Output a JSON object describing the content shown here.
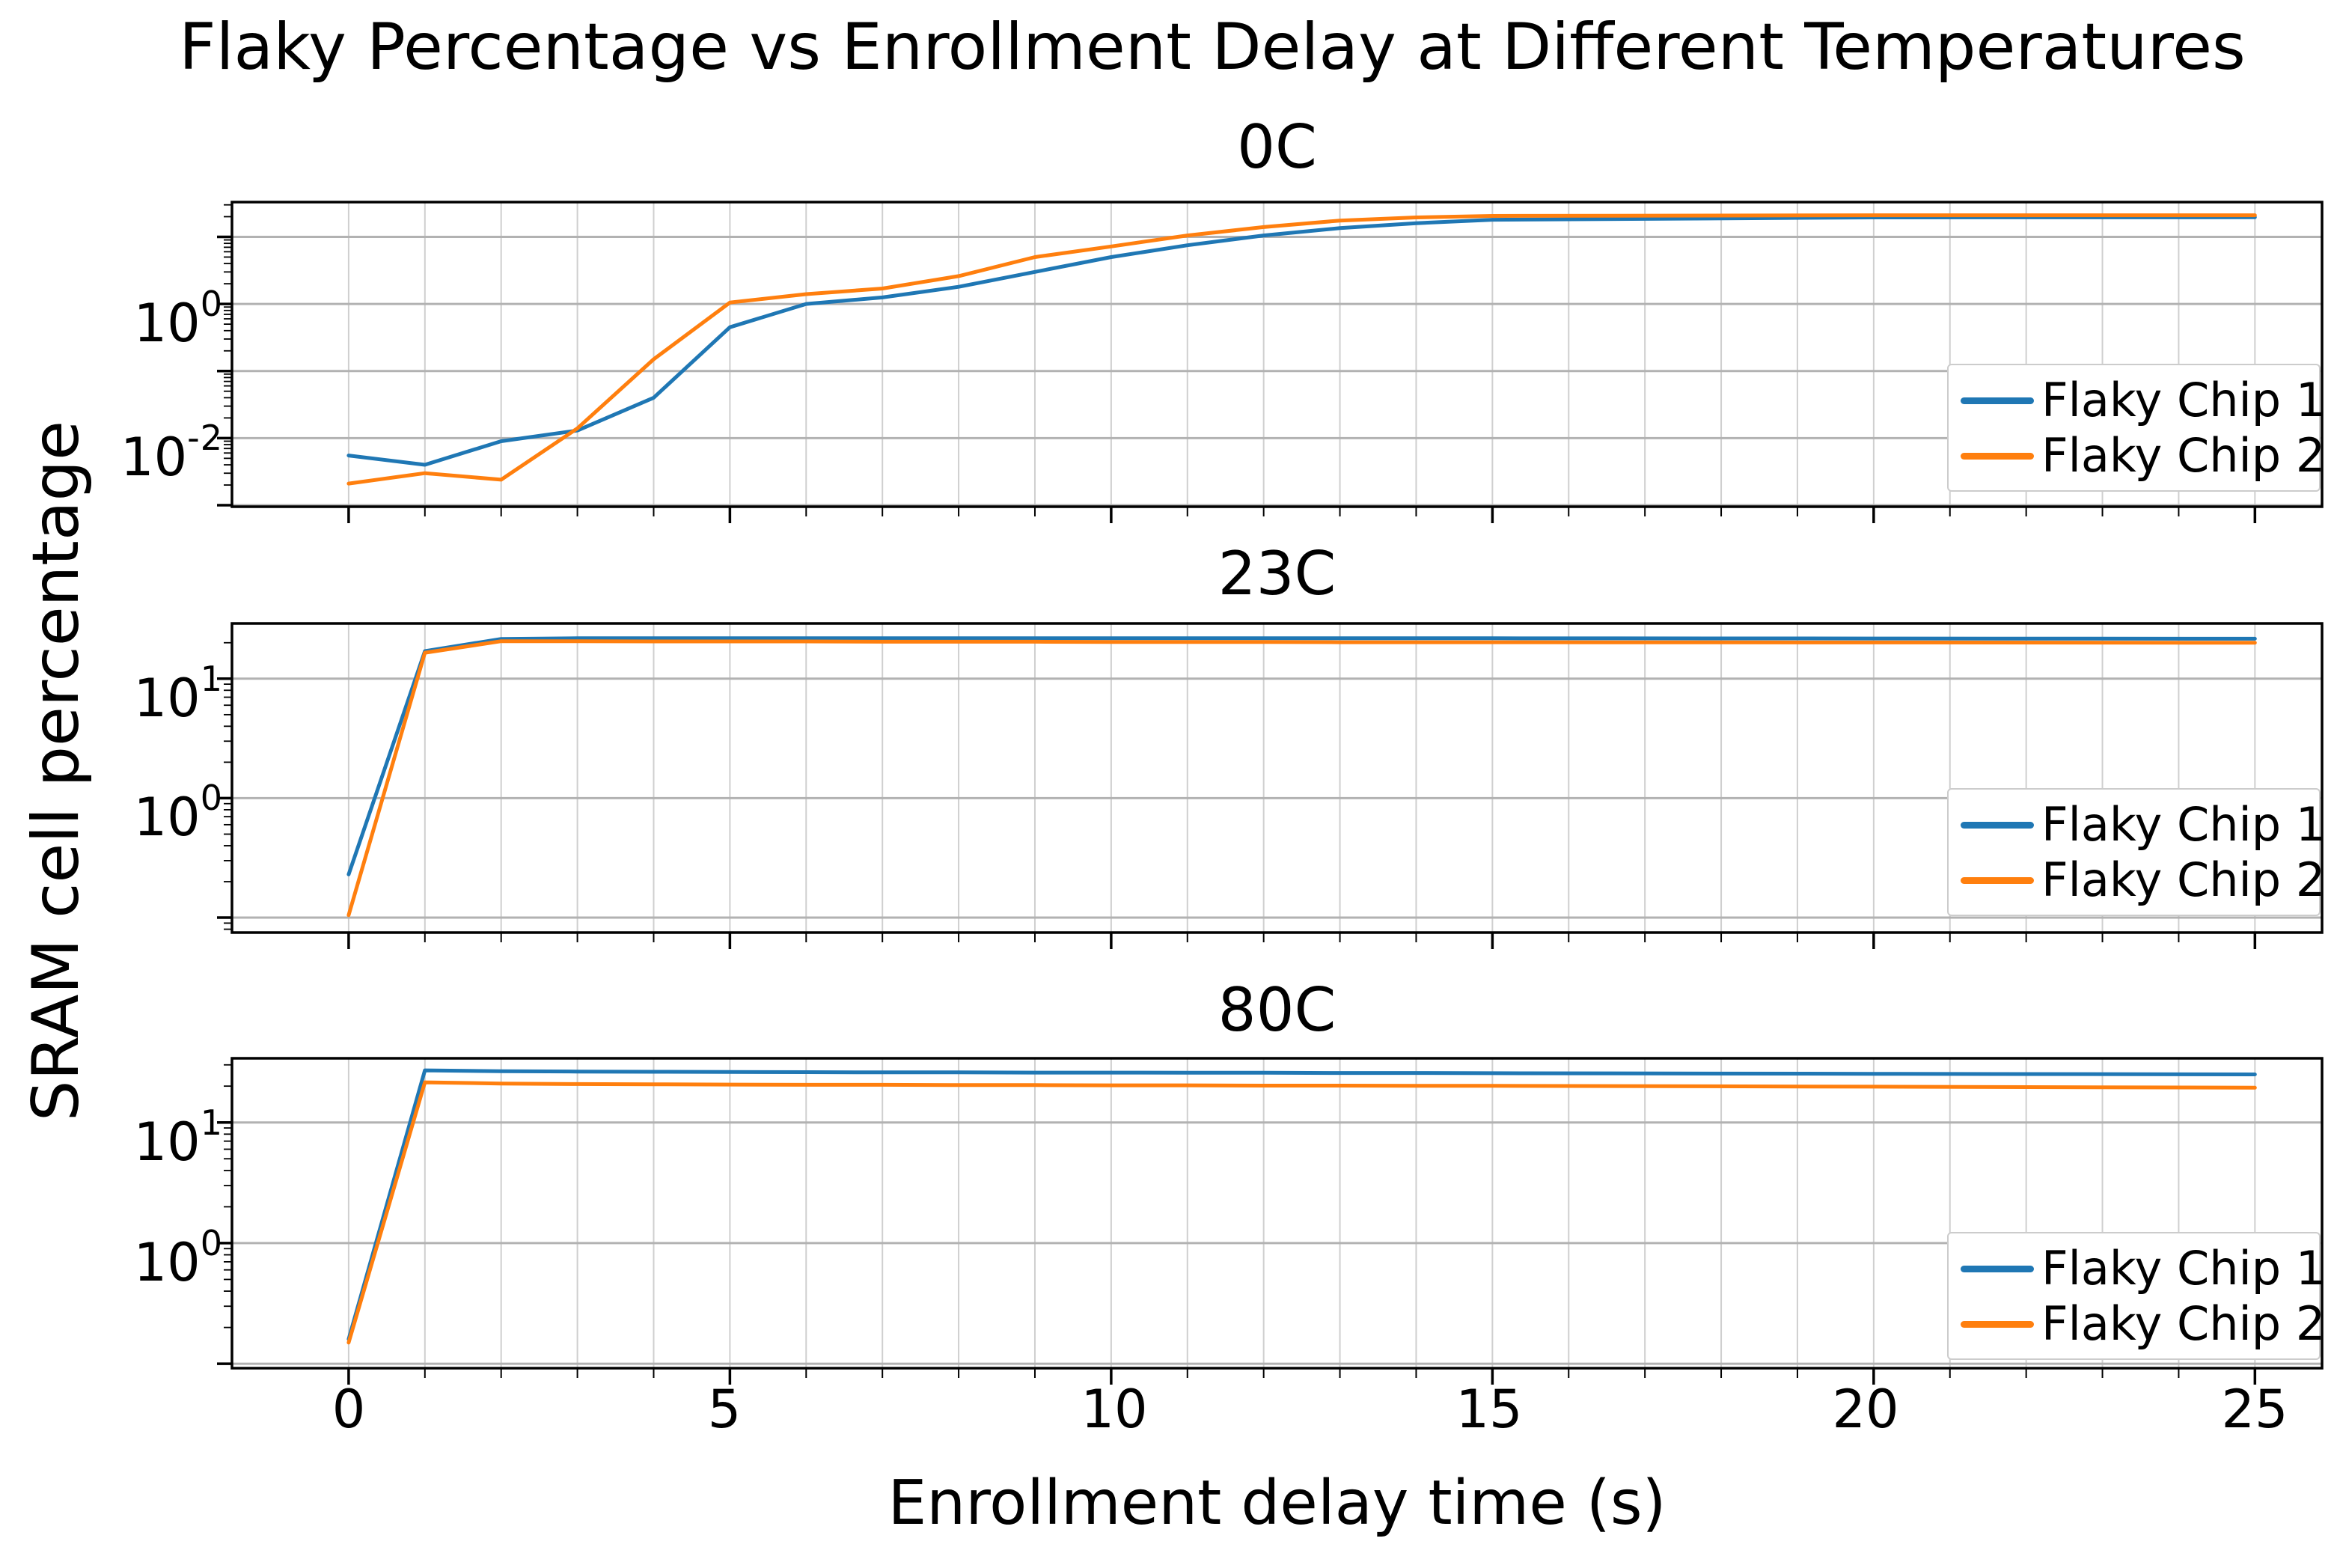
{
  "figure": {
    "title": "Flaky Percentage vs Enrollment Delay at Different Temperatures",
    "xlabel": "Enrollment delay time (s)",
    "ylabel": "SRAM cell percentage",
    "background_color": "#ffffff",
    "text_color": "#000000",
    "spine_color": "#000000",
    "major_grid_color": "#b2b2b2",
    "minor_grid_color": "#cfcfcf"
  },
  "legend": {
    "items": [
      {
        "label": "Flaky Chip 1",
        "color": "#1f77b4"
      },
      {
        "label": "Flaky Chip 2",
        "color": "#ff7f0e"
      }
    ],
    "position": "right"
  },
  "x_axis": {
    "tick_values": [
      0,
      5,
      10,
      15,
      20,
      25
    ],
    "tick_labels": [
      "0",
      "5",
      "10",
      "15",
      "20",
      "25"
    ],
    "minor_tick_step": 1,
    "minor_tick_min": 0,
    "minor_tick_max": 25
  },
  "chart_data": [
    {
      "type": "line",
      "title": "0C",
      "yscale": "log",
      "grid": true,
      "xlim": [
        -1.53,
        25.88
      ],
      "ylim": [
        0.00095,
        33
      ],
      "y_tick_labels": [
        {
          "base": "10",
          "exp": "0",
          "value": 1
        },
        {
          "base": "10",
          "exp": "-2",
          "value": 0.01
        }
      ],
      "x": [
        0,
        1,
        2,
        3,
        4,
        5,
        6,
        7,
        8,
        9,
        10,
        11,
        12,
        13,
        14,
        15,
        20,
        25
      ],
      "series": [
        {
          "name": "Flaky Chip 1",
          "color": "#1f77b4",
          "values": [
            0.0055,
            0.004,
            0.009,
            0.013,
            0.04,
            0.45,
            1.0,
            1.25,
            1.8,
            3.0,
            5.0,
            7.5,
            10.5,
            13.5,
            16,
            18,
            19.5,
            19.6
          ]
        },
        {
          "name": "Flaky Chip 2",
          "color": "#ff7f0e",
          "values": [
            0.0021,
            0.003,
            0.0024,
            0.014,
            0.15,
            1.05,
            1.4,
            1.7,
            2.6,
            5.0,
            7.2,
            10.5,
            14,
            17.5,
            19.5,
            20.5,
            21,
            21
          ]
        }
      ]
    },
    {
      "type": "line",
      "title": "23C",
      "yscale": "log",
      "grid": true,
      "xlim": [
        -1.53,
        25.88
      ],
      "ylim": [
        0.075,
        29
      ],
      "y_tick_labels": [
        {
          "base": "10",
          "exp": "1",
          "value": 10
        },
        {
          "base": "10",
          "exp": "0",
          "value": 1
        }
      ],
      "x": [
        0,
        1,
        2,
        3,
        4,
        5,
        6,
        7,
        8,
        9,
        10,
        11,
        12,
        13,
        14,
        15,
        20,
        25
      ],
      "series": [
        {
          "name": "Flaky Chip 1",
          "color": "#1f77b4",
          "values": [
            0.23,
            17,
            21.5,
            21.8,
            21.8,
            21.8,
            21.8,
            21.8,
            21.8,
            21.8,
            21.8,
            21.8,
            21.8,
            21.8,
            21.8,
            21.8,
            21.7,
            21.6
          ]
        },
        {
          "name": "Flaky Chip 2",
          "color": "#ff7f0e",
          "values": [
            0.105,
            16.5,
            20.6,
            20.6,
            20.5,
            20.5,
            20.5,
            20.4,
            20.4,
            20.4,
            20.3,
            20.3,
            20.3,
            20.2,
            20.2,
            20.2,
            20.1,
            20.0
          ]
        }
      ]
    },
    {
      "type": "line",
      "title": "80C",
      "yscale": "log",
      "grid": true,
      "xlim": [
        -1.53,
        25.88
      ],
      "ylim": [
        0.092,
        34
      ],
      "y_tick_labels": [
        {
          "base": "10",
          "exp": "1",
          "value": 10
        },
        {
          "base": "10",
          "exp": "0",
          "value": 1
        }
      ],
      "x": [
        0,
        1,
        2,
        3,
        4,
        5,
        6,
        7,
        8,
        9,
        10,
        11,
        12,
        13,
        14,
        15,
        20,
        25
      ],
      "series": [
        {
          "name": "Flaky Chip 1",
          "color": "#1f77b4",
          "values": [
            0.16,
            27,
            26.6,
            26.4,
            26.3,
            26.2,
            26.1,
            26.0,
            26.0,
            25.9,
            25.9,
            25.8,
            25.8,
            25.7,
            25.7,
            25.6,
            25.3,
            25.0
          ]
        },
        {
          "name": "Flaky Chip 2",
          "color": "#ff7f0e",
          "values": [
            0.15,
            21.5,
            21.0,
            20.8,
            20.7,
            20.6,
            20.5,
            20.5,
            20.4,
            20.4,
            20.3,
            20.3,
            20.2,
            20.2,
            20.1,
            20.1,
            19.8,
            19.4
          ]
        }
      ]
    }
  ]
}
